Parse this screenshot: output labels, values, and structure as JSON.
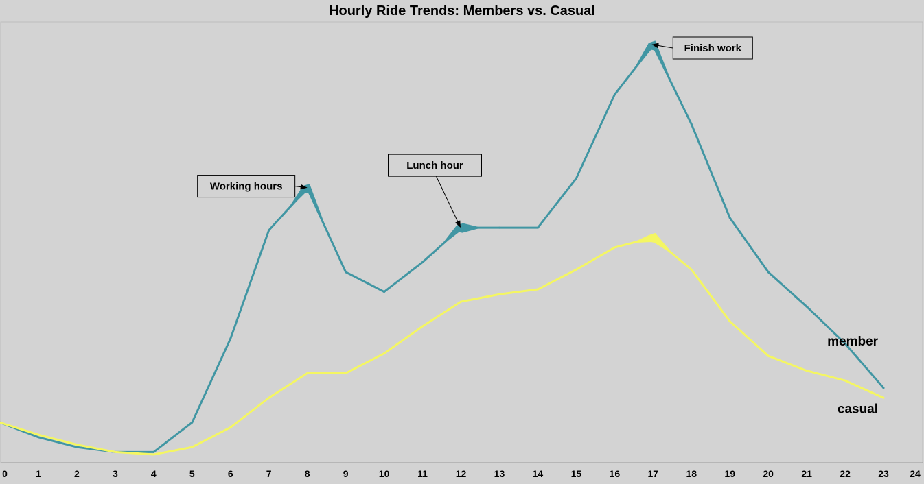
{
  "chart_data": {
    "type": "line",
    "title": "Hourly Ride Trends: Members vs. Casual",
    "xlabel": "",
    "ylabel": "",
    "xlim": [
      0,
      24
    ],
    "x_ticks": [
      0,
      1,
      2,
      3,
      4,
      5,
      6,
      7,
      8,
      9,
      10,
      11,
      12,
      13,
      14,
      15,
      16,
      17,
      18,
      19,
      20,
      21,
      22,
      23,
      24
    ],
    "x": [
      0,
      1,
      2,
      3,
      4,
      5,
      6,
      7,
      8,
      9,
      10,
      11,
      12,
      13,
      14,
      15,
      16,
      17,
      18,
      19,
      20,
      21,
      22,
      23
    ],
    "y_axis_visible": false,
    "grid": false,
    "legend": "labels at line ends (bottom-right)",
    "series": [
      {
        "name": "member",
        "color": "#4196a3",
        "values": [
          7.5,
          4.5,
          2.5,
          1.5,
          1.5,
          7.5,
          24.5,
          46.5,
          55,
          38,
          34,
          40,
          47,
          47,
          47,
          57,
          74,
          84,
          68,
          49,
          38,
          31,
          23.5,
          14.5
        ]
      },
      {
        "name": "casual",
        "color": "#f4f662",
        "values": [
          7.5,
          5,
          3,
          1.5,
          1,
          2.5,
          6.5,
          12.5,
          17.5,
          17.5,
          21.5,
          27,
          32,
          33.5,
          34.5,
          38.5,
          43,
          45,
          38.5,
          28,
          21,
          18,
          16,
          12.5
        ]
      }
    ],
    "annotations": [
      {
        "text": "Working hours",
        "series": "member",
        "x": 8
      },
      {
        "text": "Lunch hour",
        "series": "member",
        "x": 12
      },
      {
        "text": "Finish work",
        "series": "member",
        "x": 17
      }
    ],
    "highlights": [
      {
        "series": "casual",
        "x": 17
      }
    ]
  }
}
